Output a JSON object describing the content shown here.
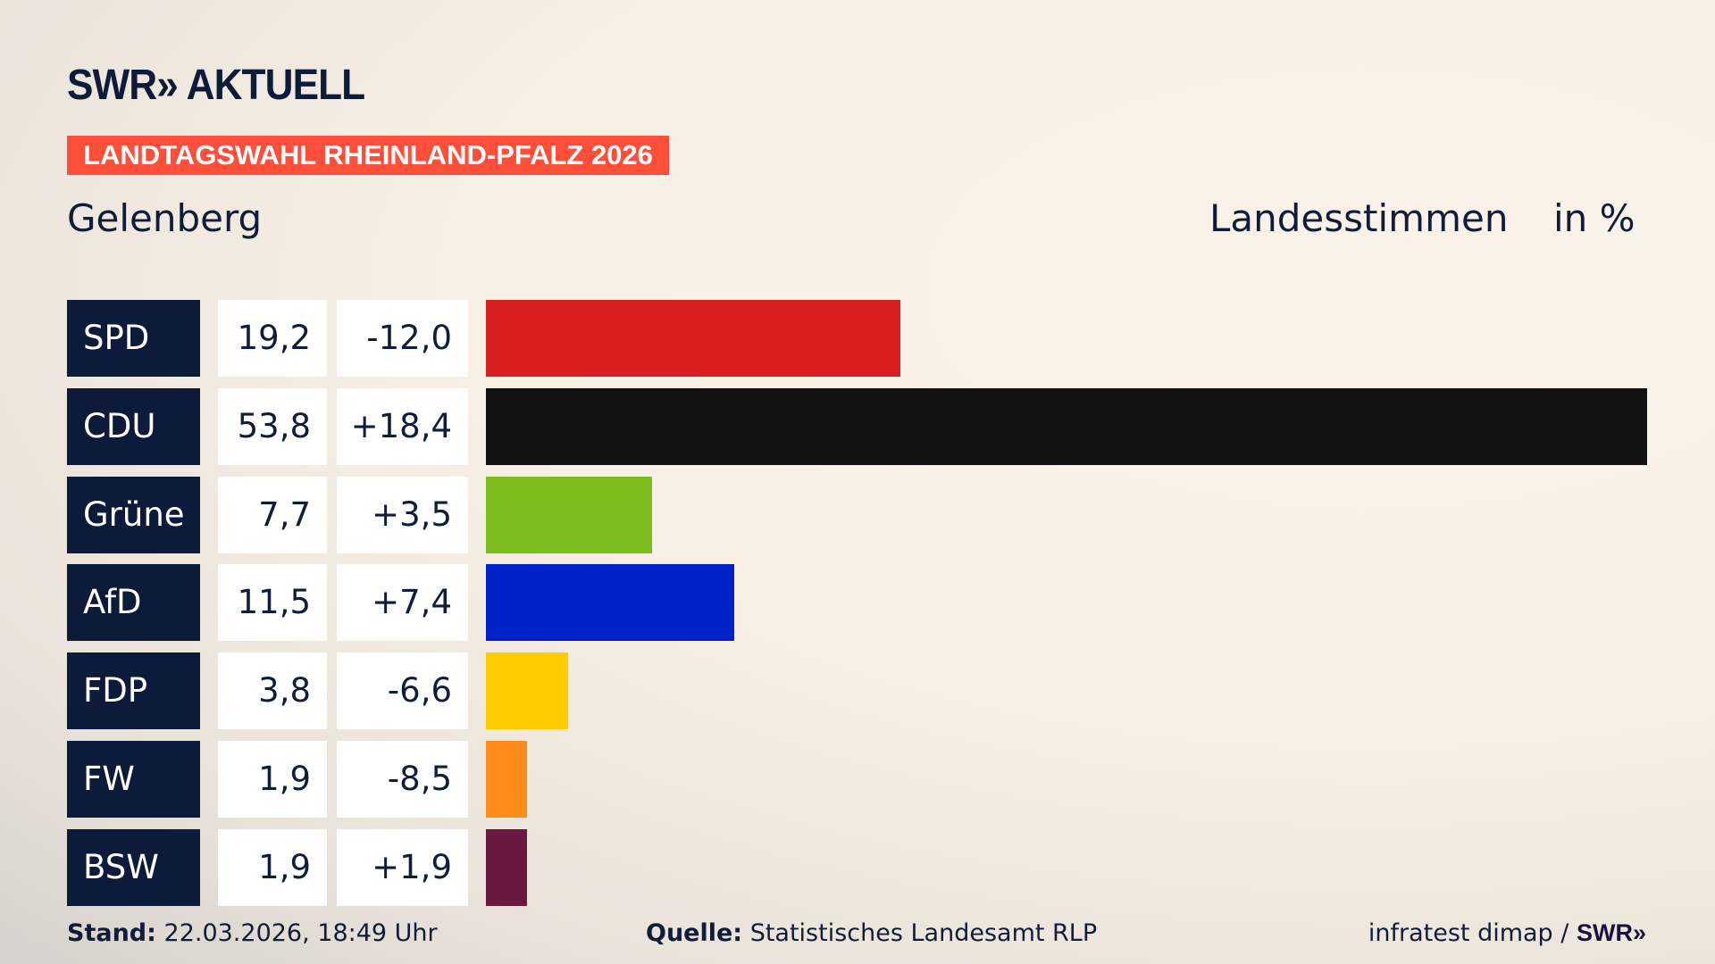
{
  "header": {
    "logo": "SWR» AKTUELL",
    "banner": "LANDTAGSWAHL RHEINLAND-PFALZ 2026",
    "region": "Gelenberg",
    "metric": "Landesstimmen",
    "unit": "in %"
  },
  "chart_data": {
    "type": "bar",
    "orientation": "horizontal",
    "categories": [
      "SPD",
      "CDU",
      "Grüne",
      "AfD",
      "FDP",
      "FW",
      "BSW"
    ],
    "values": [
      19.2,
      53.8,
      7.7,
      11.5,
      3.8,
      1.9,
      1.9
    ],
    "values_label": [
      "19,2",
      "53,8",
      "7,7",
      "11,5",
      "3,8",
      "1,9",
      "1,9"
    ],
    "diff": [
      -12.0,
      18.4,
      3.5,
      7.4,
      -6.6,
      -8.5,
      1.9
    ],
    "diff_label": [
      "-12,0",
      "+18,4",
      "+3,5",
      "+7,4",
      "-6,6",
      "-8,5",
      "+1,9"
    ],
    "colors": [
      "#d81e1e",
      "#121212",
      "#7abd1d",
      "#0020c8",
      "#ffcc00",
      "#ff8c1a",
      "#6b1840"
    ],
    "xlim": [
      0,
      53.8
    ],
    "grid": false
  },
  "footer": {
    "stand_label": "Stand:",
    "stand_value": "22.03.2026, 18:49 Uhr",
    "source_label": "Quelle:",
    "source_value": "Statistisches Landesamt RLP",
    "credit": "infratest dimap /",
    "credit_logo": "SWR»"
  }
}
